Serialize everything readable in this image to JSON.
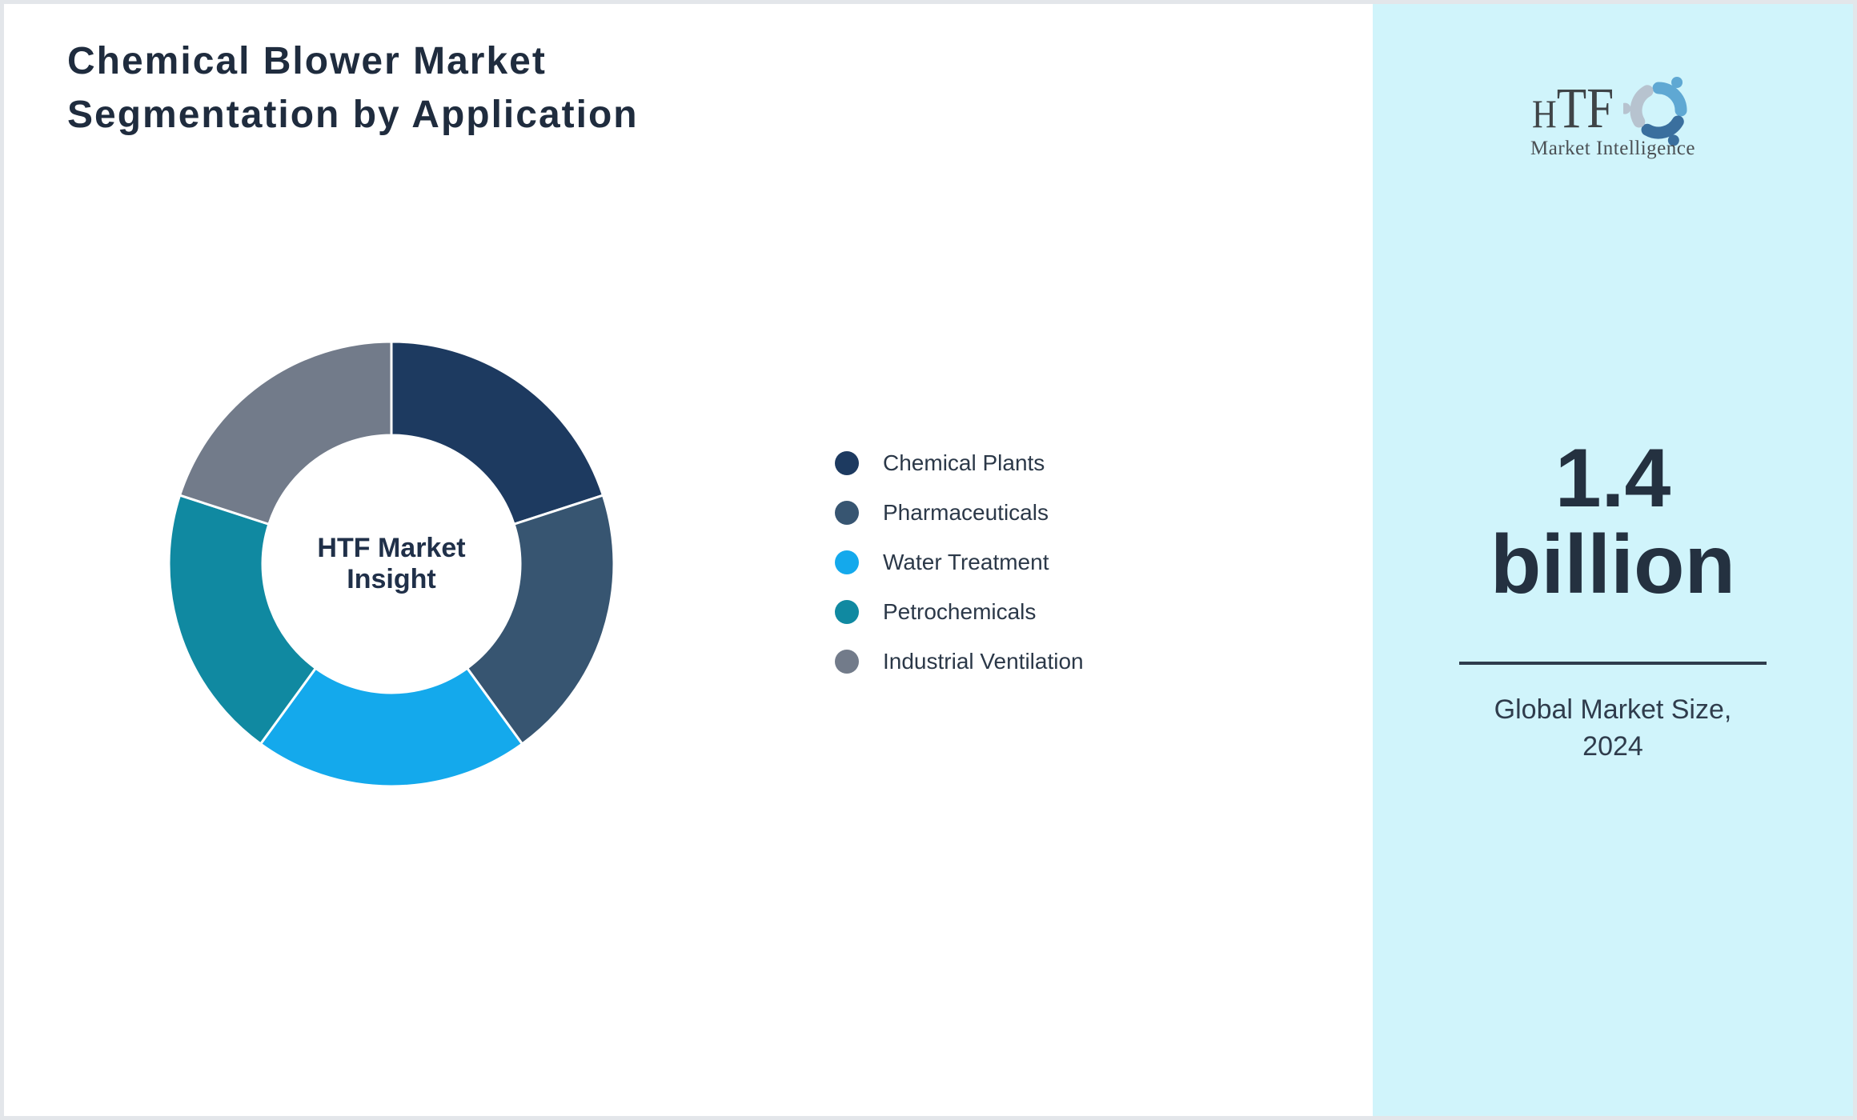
{
  "title": "Chemical Blower Market\nSegmentation by Application",
  "chart_data": {
    "type": "pie",
    "subtype": "donut",
    "title": "Chemical Blower Market Segmentation by Application",
    "center_label": "HTF Market\nInsight",
    "legend_position": "right-middle",
    "direction": "clockwise-from-top",
    "inner_radius_ratio": 0.58,
    "separator_color": "#ffffff",
    "values_note": "percent shares estimated from arc angles; all five segments are equal (no numeric labels shown in image)",
    "segments": [
      {
        "label": "Chemical Plants",
        "value": 20,
        "color": "#1d3a60"
      },
      {
        "label": "Pharmaceuticals",
        "value": 20,
        "color": "#375571"
      },
      {
        "label": "Water Treatment",
        "value": 20,
        "color": "#14a9ec"
      },
      {
        "label": "Petrochemicals",
        "value": 20,
        "color": "#1089a1"
      },
      {
        "label": "Industrial Ventilation",
        "value": 20,
        "color": "#727b8a"
      }
    ]
  },
  "side_panel": {
    "background_color": "#d0f4fb",
    "logo": {
      "text": "HTF",
      "subtext": "Market Intelligence",
      "swirl_colors": [
        "#5fa8d3",
        "#3a6f9e",
        "#b7c3cf"
      ]
    },
    "stat_value": "1.4\nbillion",
    "stat_caption": "Global Market Size,\n2024"
  },
  "colors": {
    "canvas_border": "#e3e6ea",
    "title_text": "#1f2c3e",
    "legend_text": "#2b3848",
    "stat_text": "#243140",
    "divider": "#2e3c4c"
  }
}
